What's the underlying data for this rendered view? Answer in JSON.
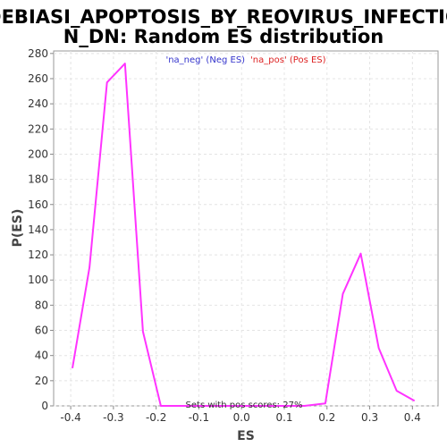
{
  "chart_data": {
    "type": "line",
    "title_lines": [
      "DEBIASI_APOPTOSIS_BY_REOVIRUS_INFECTIO",
      "N_DN: Random ES distribution"
    ],
    "xlabel": "ES",
    "ylabel": "P(ES)",
    "xlim": [
      -0.44,
      0.46
    ],
    "ylim": [
      0,
      282
    ],
    "xticks": [
      -0.4,
      -0.3,
      -0.2,
      -0.1,
      0.0,
      0.1,
      0.2,
      0.3,
      0.4
    ],
    "xtick_labels": [
      "-0.4",
      "-0.3",
      "-0.2",
      "-0.1",
      "0.0",
      "0.1",
      "0.2",
      "0.3",
      "0.4"
    ],
    "yticks": [
      0,
      20,
      40,
      60,
      80,
      100,
      120,
      140,
      160,
      180,
      200,
      220,
      240,
      260,
      280
    ],
    "ytick_labels": [
      "0",
      "20",
      "40",
      "60",
      "80",
      "100",
      "120",
      "140",
      "160",
      "180",
      "200",
      "220",
      "240",
      "260",
      "280"
    ],
    "grid": true,
    "legend": [
      {
        "label": "'na_neg' (Neg ES)",
        "color": "#3333cc"
      },
      {
        "label": "'na_pos' (Pos ES)",
        "color": "#dd2222"
      }
    ],
    "legend_position": "top-center",
    "annotation": "Sets with pos scores: 27%",
    "series": [
      {
        "color": "#ff33ff",
        "x": [
          -0.396,
          -0.356,
          -0.315,
          -0.273,
          -0.231,
          -0.189,
          -0.147,
          -0.105,
          -0.063,
          -0.021,
          0.021,
          0.063,
          0.105,
          0.147,
          0.196,
          0.237,
          0.279,
          0.321,
          0.363,
          0.405
        ],
        "y": [
          30,
          110,
          257,
          272,
          59,
          0,
          0,
          0,
          0,
          0,
          0,
          0,
          0,
          0,
          2,
          89,
          121,
          46,
          12,
          4
        ]
      }
    ]
  }
}
